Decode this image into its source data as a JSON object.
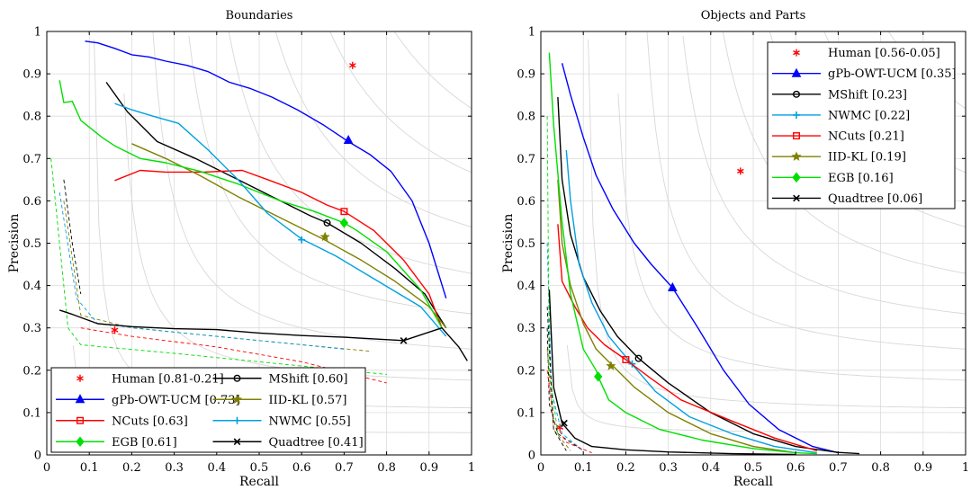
{
  "chart_data": [
    {
      "type": "line",
      "title": "Boundaries",
      "xlabel": "Recall",
      "ylabel": "Precision",
      "xlim": [
        0,
        1
      ],
      "ylim": [
        0,
        1
      ],
      "xticks": [
        "0",
        "0.1",
        "0.2",
        "0.3",
        "0.4",
        "0.5",
        "0.6",
        "0.7",
        "0.8",
        "0.9",
        "1"
      ],
      "yticks": [
        "0",
        "0.1",
        "0.2",
        "0.3",
        "0.4",
        "0.5",
        "0.6",
        "0.7",
        "0.8",
        "0.9",
        "1"
      ],
      "grid": true,
      "iso_f_contours": [
        0.1,
        0.2,
        0.3,
        0.4,
        0.5,
        0.6,
        0.7,
        0.8,
        0.9
      ],
      "legend_location": "bottom-left",
      "legend_columns": 2,
      "series": [
        {
          "name": "Human [0.81-0.21]",
          "color": "#ff0000",
          "kind": "point",
          "points": [
            [
              0.72,
              0.92
            ]
          ]
        },
        {
          "name": "Human [0.81-0.21]",
          "color": "#ff0000",
          "kind": "point",
          "points": [
            [
              0.16,
              0.295
            ]
          ],
          "in_legend": false
        },
        {
          "name": "gPb-OWT-UCM [0.73]",
          "color": "#0000ff",
          "marker": "triangle",
          "x": [
            0.09,
            0.12,
            0.16,
            0.2,
            0.24,
            0.28,
            0.33,
            0.38,
            0.43,
            0.48,
            0.53,
            0.59,
            0.65,
            0.71,
            0.76,
            0.81,
            0.86,
            0.9,
            0.94
          ],
          "y": [
            0.977,
            0.973,
            0.96,
            0.945,
            0.94,
            0.93,
            0.92,
            0.905,
            0.88,
            0.865,
            0.845,
            0.815,
            0.78,
            0.74,
            0.71,
            0.67,
            0.6,
            0.5,
            0.37
          ],
          "marker_at": [
            0.71,
            0.743
          ],
          "dashed_x": [],
          "dashed_y": []
        },
        {
          "name": "MShift [0.60]",
          "color": "#000000",
          "marker": "circle",
          "x": [
            0.14,
            0.19,
            0.26,
            0.35,
            0.45,
            0.55,
            0.62,
            0.66,
            0.74,
            0.82,
            0.89,
            0.94
          ],
          "y": [
            0.88,
            0.81,
            0.74,
            0.7,
            0.65,
            0.6,
            0.565,
            0.548,
            0.5,
            0.44,
            0.38,
            0.3
          ],
          "marker_at": [
            0.66,
            0.548
          ],
          "dashed_x": [
            0.04,
            0.06,
            0.08
          ],
          "dashed_y": [
            0.65,
            0.5,
            0.38
          ]
        },
        {
          "name": "NCuts [0.63]",
          "color": "#ff0000",
          "marker": "square",
          "x": [
            0.16,
            0.22,
            0.28,
            0.37,
            0.46,
            0.52,
            0.6,
            0.66,
            0.7,
            0.77,
            0.84,
            0.9,
            0.93
          ],
          "y": [
            0.648,
            0.672,
            0.668,
            0.668,
            0.672,
            0.65,
            0.62,
            0.59,
            0.575,
            0.53,
            0.46,
            0.38,
            0.3
          ],
          "marker_at": [
            0.7,
            0.575
          ],
          "dashed_x": [
            0.08,
            0.2,
            0.4,
            0.6,
            0.8
          ],
          "dashed_y": [
            0.3,
            0.28,
            0.255,
            0.22,
            0.17
          ]
        },
        {
          "name": "IID-KL [0.57]",
          "color": "#808000",
          "marker": "star",
          "x": [
            0.2,
            0.28,
            0.36,
            0.45,
            0.55,
            0.65,
            0.74,
            0.82,
            0.9,
            0.94
          ],
          "y": [
            0.735,
            0.7,
            0.66,
            0.61,
            0.56,
            0.51,
            0.46,
            0.41,
            0.35,
            0.3
          ],
          "marker_at": [
            0.655,
            0.515
          ],
          "dashed_x": [
            0.04,
            0.08,
            0.2,
            0.5,
            0.76
          ],
          "dashed_y": [
            0.6,
            0.33,
            0.3,
            0.27,
            0.245
          ]
        },
        {
          "name": "EGB [0.61]",
          "color": "#00e000",
          "marker": "diamond",
          "x": [
            0.03,
            0.04,
            0.06,
            0.08,
            0.13,
            0.16,
            0.22,
            0.28,
            0.36,
            0.45,
            0.55,
            0.63,
            0.7,
            0.73,
            0.8,
            0.88,
            0.93
          ],
          "y": [
            0.885,
            0.832,
            0.835,
            0.79,
            0.75,
            0.73,
            0.7,
            0.69,
            0.67,
            0.64,
            0.6,
            0.575,
            0.548,
            0.53,
            0.48,
            0.39,
            0.3
          ],
          "marker_at": [
            0.7,
            0.548
          ],
          "dashed_x": [
            0.01,
            0.05,
            0.08,
            0.3,
            0.6,
            0.8
          ],
          "dashed_y": [
            0.7,
            0.3,
            0.26,
            0.24,
            0.21,
            0.19
          ]
        },
        {
          "name": "NWMC [0.55]",
          "color": "#00a0e0",
          "marker": "plus",
          "x": [
            0.16,
            0.2,
            0.25,
            0.31,
            0.38,
            0.45,
            0.52,
            0.6,
            0.68,
            0.78,
            0.88,
            0.94
          ],
          "y": [
            0.83,
            0.815,
            0.8,
            0.783,
            0.72,
            0.65,
            0.57,
            0.51,
            0.47,
            0.41,
            0.35,
            0.28
          ],
          "marker_at": [
            0.6,
            0.508
          ],
          "dashed_x": [
            0.03,
            0.07,
            0.12,
            0.3,
            0.5,
            0.7
          ],
          "dashed_y": [
            0.62,
            0.37,
            0.31,
            0.29,
            0.27,
            0.25
          ]
        },
        {
          "name": "Quadtree [0.41]",
          "color": "#000000",
          "marker": "cross",
          "x": [
            0.03,
            0.06,
            0.12,
            0.2,
            0.3,
            0.4,
            0.5,
            0.6,
            0.7,
            0.84,
            0.93,
            0.97,
            0.99
          ],
          "y": [
            0.342,
            0.332,
            0.31,
            0.303,
            0.298,
            0.296,
            0.288,
            0.282,
            0.278,
            0.27,
            0.3,
            0.255,
            0.222
          ],
          "marker_at": [
            0.84,
            0.27
          ],
          "dashed_x": [],
          "dashed_y": []
        }
      ],
      "legend_order": [
        "Human [0.81-0.21]",
        "MShift [0.60]",
        "gPb-OWT-UCM [0.73]",
        "IID-KL [0.57]",
        "NCuts [0.63]",
        "NWMC [0.55]",
        "EGB [0.61]",
        "Quadtree [0.41]"
      ]
    },
    {
      "type": "line",
      "title": "Objects and Parts",
      "xlabel": "Recall",
      "ylabel": "Precision",
      "xlim": [
        0,
        1
      ],
      "ylim": [
        0,
        1
      ],
      "xticks": [
        "0",
        "0.1",
        "0.2",
        "0.3",
        "0.4",
        "0.5",
        "0.6",
        "0.7",
        "0.8",
        "0.9",
        "1"
      ],
      "yticks": [
        "0",
        "0.1",
        "0.2",
        "0.3",
        "0.4",
        "0.5",
        "0.6",
        "0.7",
        "0.8",
        "0.9",
        "1"
      ],
      "grid": true,
      "iso_f_contours": [
        0.1,
        0.2,
        0.3,
        0.4,
        0.5,
        0.6,
        0.7,
        0.8,
        0.9
      ],
      "legend_location": "top-right",
      "legend_columns": 1,
      "series": [
        {
          "name": "Human [0.56-0.05]",
          "color": "#ff0000",
          "kind": "point",
          "points": [
            [
              0.47,
              0.67
            ]
          ]
        },
        {
          "name": "Human [0.56-0.05]",
          "color": "#ff0000",
          "kind": "point",
          "points": [
            [
              0.045,
              0.065
            ]
          ],
          "in_legend": false
        },
        {
          "name": "gPb-OWT-UCM [0.35]",
          "color": "#0000ff",
          "marker": "triangle",
          "x": [
            0.05,
            0.07,
            0.1,
            0.13,
            0.17,
            0.22,
            0.26,
            0.31,
            0.37,
            0.43,
            0.49,
            0.56,
            0.64,
            0.7
          ],
          "y": [
            0.925,
            0.85,
            0.75,
            0.66,
            0.58,
            0.5,
            0.45,
            0.395,
            0.3,
            0.2,
            0.12,
            0.06,
            0.02,
            0.005
          ],
          "marker_at": [
            0.31,
            0.395
          ],
          "dashed_x": [],
          "dashed_y": []
        },
        {
          "name": "MShift [0.23]",
          "color": "#000000",
          "marker": "circle",
          "x": [
            0.04,
            0.05,
            0.07,
            0.1,
            0.14,
            0.18,
            0.23,
            0.3,
            0.4,
            0.5,
            0.6,
            0.7,
            0.75
          ],
          "y": [
            0.845,
            0.65,
            0.52,
            0.42,
            0.34,
            0.28,
            0.228,
            0.17,
            0.1,
            0.05,
            0.02,
            0.006,
            0.003
          ],
          "marker_at": [
            0.23,
            0.228
          ],
          "dashed_x": [
            0.015,
            0.02,
            0.04,
            0.1
          ],
          "dashed_y": [
            0.3,
            0.12,
            0.05,
            0.01
          ]
        },
        {
          "name": "NWMC [0.22]",
          "color": "#00a0e0",
          "marker": "plus",
          "x": [
            0.06,
            0.07,
            0.09,
            0.12,
            0.16,
            0.21,
            0.27,
            0.35,
            0.45,
            0.55,
            0.65
          ],
          "y": [
            0.72,
            0.6,
            0.45,
            0.36,
            0.28,
            0.22,
            0.15,
            0.09,
            0.05,
            0.02,
            0.005
          ],
          "marker_at": [
            0.215,
            0.215
          ],
          "dashed_x": [
            0.015,
            0.025,
            0.05,
            0.1
          ],
          "dashed_y": [
            0.5,
            0.15,
            0.05,
            0.01
          ]
        },
        {
          "name": "NCuts [0.21]",
          "color": "#ff0000",
          "marker": "square",
          "x": [
            0.04,
            0.05,
            0.08,
            0.11,
            0.15,
            0.2,
            0.26,
            0.33,
            0.45,
            0.55,
            0.65
          ],
          "y": [
            0.545,
            0.41,
            0.35,
            0.3,
            0.26,
            0.225,
            0.18,
            0.13,
            0.08,
            0.04,
            0.01
          ],
          "marker_at": [
            0.2,
            0.225
          ],
          "dashed_x": [
            0.015,
            0.03,
            0.06,
            0.12
          ],
          "dashed_y": [
            0.2,
            0.08,
            0.03,
            0.005
          ]
        },
        {
          "name": "IID-KL [0.19]",
          "color": "#808000",
          "marker": "star",
          "x": [
            0.04,
            0.05,
            0.07,
            0.1,
            0.13,
            0.17,
            0.22,
            0.3,
            0.4,
            0.5,
            0.6
          ],
          "y": [
            0.65,
            0.5,
            0.4,
            0.31,
            0.25,
            0.21,
            0.16,
            0.1,
            0.05,
            0.02,
            0.005
          ],
          "marker_at": [
            0.165,
            0.21
          ],
          "dashed_x": [
            0.015,
            0.03,
            0.07
          ],
          "dashed_y": [
            0.25,
            0.06,
            0.01
          ]
        },
        {
          "name": "EGB [0.16]",
          "color": "#00e000",
          "marker": "diamond",
          "x": [
            0.02,
            0.03,
            0.05,
            0.07,
            0.1,
            0.13,
            0.135,
            0.16,
            0.2,
            0.28,
            0.38,
            0.5,
            0.6,
            0.65
          ],
          "y": [
            0.95,
            0.78,
            0.55,
            0.38,
            0.25,
            0.2,
            0.185,
            0.13,
            0.1,
            0.06,
            0.035,
            0.015,
            0.005,
            0.003
          ],
          "marker_at": [
            0.135,
            0.185
          ],
          "dashed_x": [
            0.015,
            0.02,
            0.04
          ],
          "dashed_y": [
            0.8,
            0.2,
            0.05
          ]
        },
        {
          "name": "Quadtree [0.06]",
          "color": "#000000",
          "marker": "cross",
          "x": [
            0.02,
            0.03,
            0.05,
            0.08,
            0.12,
            0.2,
            0.3,
            0.45,
            0.6
          ],
          "y": [
            0.39,
            0.16,
            0.075,
            0.04,
            0.02,
            0.012,
            0.007,
            0.003,
            0.001
          ],
          "marker_at": [
            0.055,
            0.075
          ],
          "dashed_x": [
            0.015,
            0.03,
            0.06
          ],
          "dashed_y": [
            0.35,
            0.06,
            0.01
          ]
        }
      ],
      "legend_order": [
        "Human [0.56-0.05]",
        "gPb-OWT-UCM [0.35]",
        "MShift [0.23]",
        "NWMC [0.22]",
        "NCuts [0.21]",
        "IID-KL [0.19]",
        "EGB [0.16]",
        "Quadtree [0.06]"
      ]
    }
  ]
}
